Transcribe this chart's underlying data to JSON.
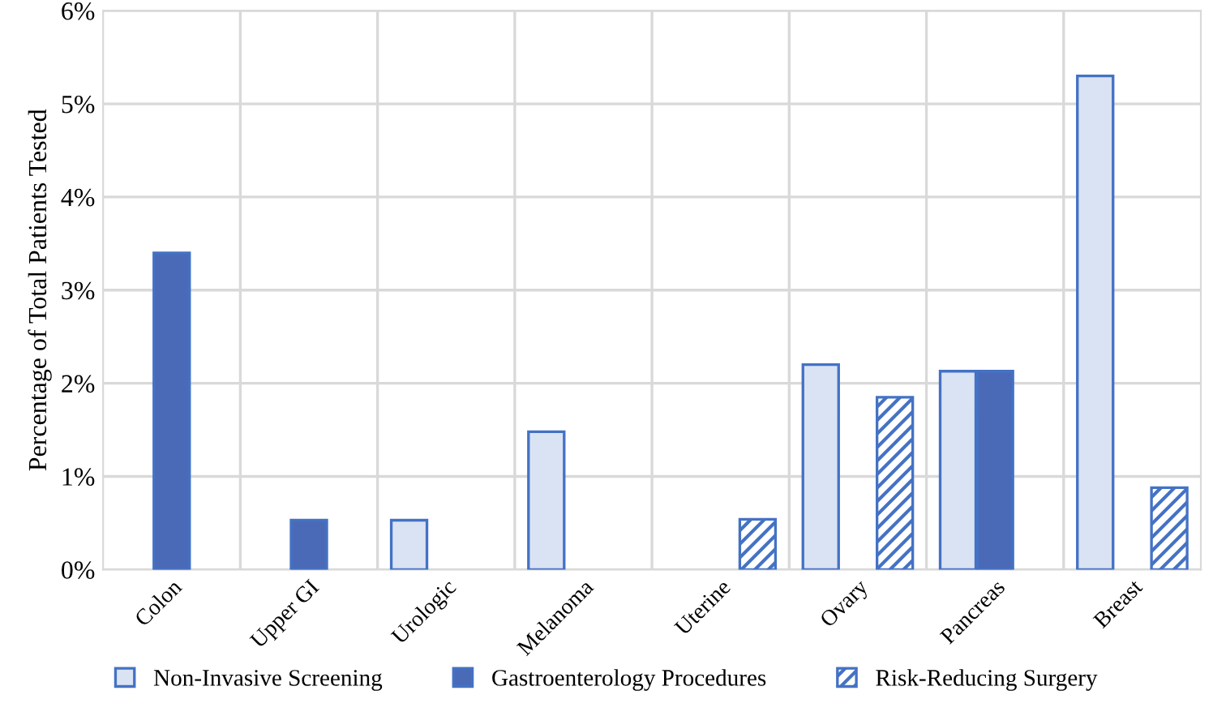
{
  "chart_data": {
    "type": "bar",
    "ylabel": "Percentage of Total Patients Tested",
    "categories": [
      "Colon",
      "Upper GI",
      "Urologic",
      "Melanoma",
      "Uterine",
      "Ovary",
      "Pancreas",
      "Breast"
    ],
    "series": [
      {
        "name": "Non-Invasive Screening",
        "color": "#dae3f3",
        "values": [
          null,
          null,
          0.53,
          1.48,
          null,
          2.2,
          2.13,
          5.3
        ]
      },
      {
        "name": "Gastroenterology Procedures",
        "color": "#4a6ab8",
        "values": [
          3.4,
          0.53,
          null,
          null,
          null,
          null,
          2.13,
          null
        ]
      },
      {
        "name": "Risk-Reducing Surgery",
        "color": "#4472c4",
        "values": [
          null,
          null,
          null,
          null,
          0.54,
          1.85,
          null,
          0.88
        ]
      }
    ],
    "ylim": [
      0,
      6
    ],
    "yticks": [
      {
        "value": 0,
        "label": "0%"
      },
      {
        "value": 1,
        "label": "1%"
      },
      {
        "value": 2,
        "label": "2%"
      },
      {
        "value": 3,
        "label": "3%"
      },
      {
        "value": 4,
        "label": "4%"
      },
      {
        "value": 5,
        "label": "5%"
      },
      {
        "value": 6,
        "label": "6%"
      }
    ],
    "grid": true,
    "legend": "bottom"
  }
}
